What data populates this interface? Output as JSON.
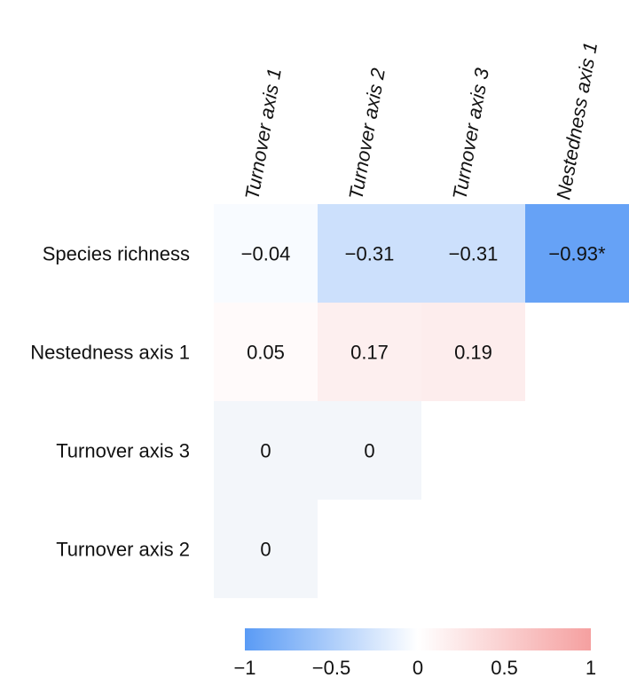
{
  "chart_data": {
    "type": "heatmap",
    "title": "",
    "rows": [
      "Species richness",
      "Nestedness axis 1",
      "Turnover axis 3",
      "Turnover axis 2"
    ],
    "columns": [
      "Turnover axis 1",
      "Turnover axis 2",
      "Turnover axis 3",
      "Nestedness axis 1"
    ],
    "values": [
      [
        -0.04,
        -0.31,
        -0.31,
        -0.93
      ],
      [
        0.05,
        0.17,
        0.19,
        null
      ],
      [
        0,
        0,
        null,
        null
      ],
      [
        0,
        null,
        null,
        null
      ]
    ],
    "labels": [
      [
        "−0.04",
        "−0.31",
        "−0.31",
        "−0.93*"
      ],
      [
        "0.05",
        "0.17",
        "0.19",
        ""
      ],
      [
        "0",
        "0",
        "",
        ""
      ],
      [
        "0",
        "",
        "",
        ""
      ]
    ],
    "colorbar": {
      "range": [
        -1,
        1
      ],
      "ticks": [
        -1,
        -0.5,
        0,
        0.5,
        1
      ],
      "tick_labels": [
        "−1",
        "−0.5",
        "0",
        "0.5",
        "1"
      ],
      "colors": {
        "low": "#5a9bf5",
        "mid": "#ffffff",
        "high": "#f5a0a0"
      }
    },
    "empty_cell_color": "#f3f6fa"
  }
}
